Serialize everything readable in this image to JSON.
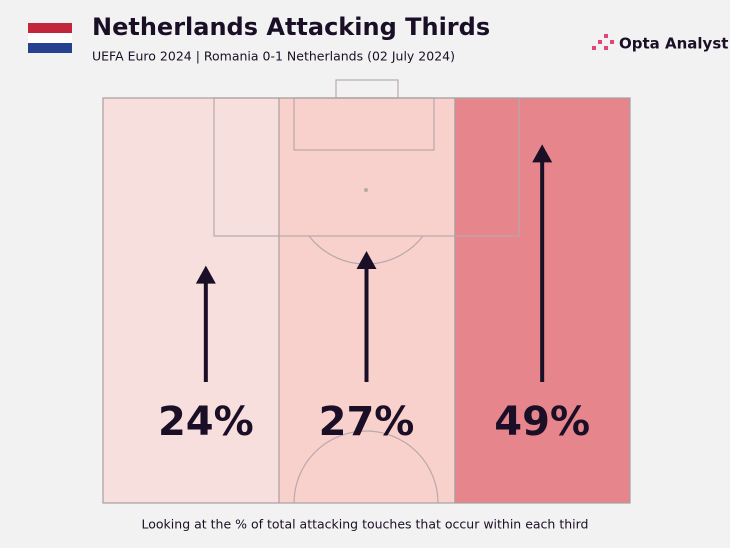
{
  "chart_data": {
    "type": "thirds",
    "title": "Netherlands Attacking Thirds",
    "subtitle": "UEFA Euro 2024 | Romania 0-1 Netherlands (02 July 2024)",
    "brand": "Opta Analyst",
    "values": [
      24,
      27,
      49
    ],
    "value_labels": [
      "24%",
      "27%",
      "49%"
    ],
    "colors": [
      "#f7dfdd",
      "#f8d1cd",
      "#e6858b"
    ],
    "arrow_color": "#1a0f26",
    "footnote": "Looking at the % of total attacking touches that occur within each third"
  }
}
